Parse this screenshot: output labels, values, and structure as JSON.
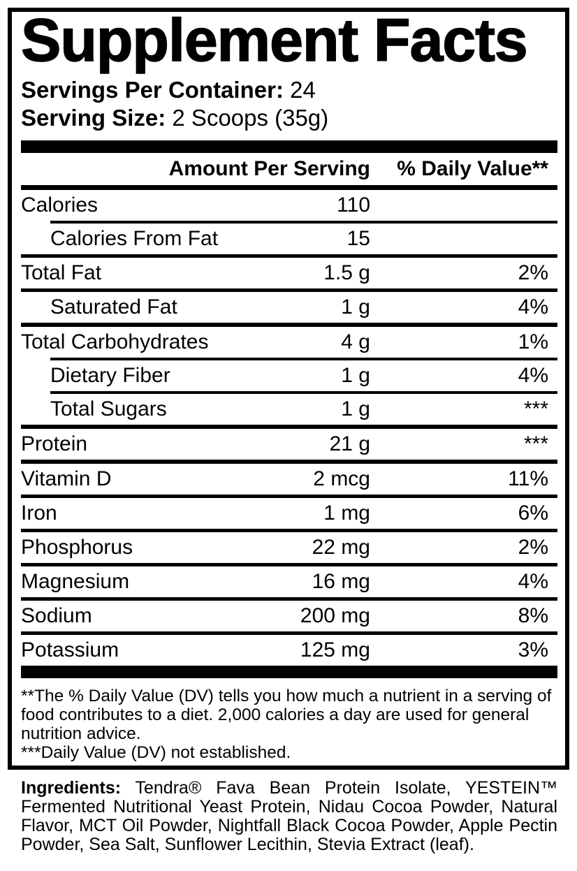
{
  "title": "Supplement Facts",
  "serving_info": {
    "servings_label": "Servings Per Container:",
    "servings_value": "24",
    "size_label": "Serving Size:",
    "size_value": "2 Scoops (35g)"
  },
  "table": {
    "header": {
      "amount": "Amount Per Serving",
      "dv": "% Daily Value**"
    },
    "rows": [
      {
        "name": "Calories",
        "amount": "110",
        "dv": ""
      },
      {
        "name": "Calories From Fat",
        "amount": "15",
        "dv": ""
      },
      {
        "name": "Total Fat",
        "amount": "1.5 g",
        "dv": "2%"
      },
      {
        "name": "Saturated Fat",
        "amount": "1 g",
        "dv": "4%"
      },
      {
        "name": "Total Carbohydrates",
        "amount": "4 g",
        "dv": "1%"
      },
      {
        "name": "Dietary Fiber",
        "amount": "1 g",
        "dv": "4%"
      },
      {
        "name": "Total Sugars",
        "amount": "1 g",
        "dv": "***"
      },
      {
        "name": "Protein",
        "amount": "21 g",
        "dv": "***"
      },
      {
        "name": "Vitamin D",
        "amount": "2 mcg",
        "dv": "11%"
      },
      {
        "name": "Iron",
        "amount": "1 mg",
        "dv": "6%"
      },
      {
        "name": "Phosphorus",
        "amount": "22 mg",
        "dv": "2%"
      },
      {
        "name": "Magnesium",
        "amount": "16 mg",
        "dv": "4%"
      },
      {
        "name": "Sodium",
        "amount": "200 mg",
        "dv": "8%"
      },
      {
        "name": "Potassium",
        "amount": "125 mg",
        "dv": "3%"
      }
    ]
  },
  "footnote": {
    "lines": [
      "**The % Daily Value (DV) tells you how much a nutrient in a serving of",
      "food contributes to a diet. 2,000 calories a day are used for general",
      "nutrition advice.",
      "***Daily Value (DV) not established."
    ]
  },
  "ingredients": {
    "label": "Ingredients:",
    "lines": [
      "Tendra® Fava Bean Protein Isolate, YESTEIN™",
      "Fermented Nutritional Yeast Protein, Nidau Cocoa Powder, Natural",
      "Flavor, MCT Oil Powder, Nightfall Black Cocoa Powder, Apple Pectin",
      "Powder, Sea Salt, Sunflower Lecithin, Stevia Extract (leaf)."
    ]
  },
  "colors": {
    "ink": "#000000",
    "paper": "#ffffff"
  }
}
